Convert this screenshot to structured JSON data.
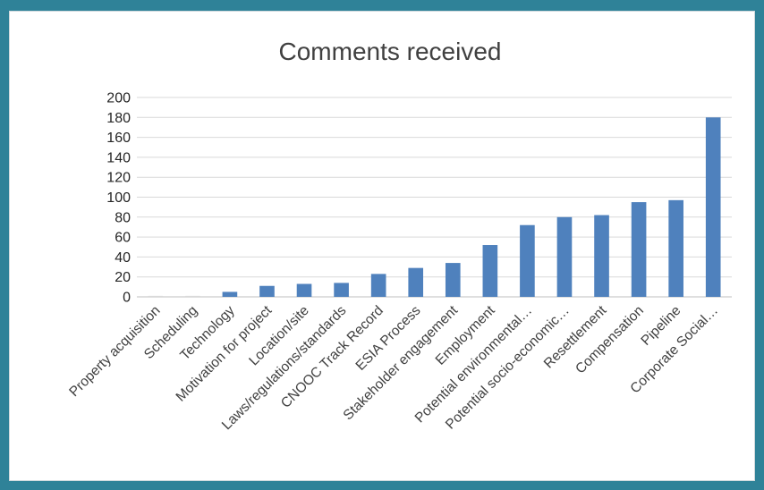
{
  "chart_data": {
    "type": "bar",
    "title": "Comments received",
    "xlabel": "",
    "ylabel": "",
    "ylim": [
      0,
      200
    ],
    "yticks": [
      0,
      20,
      40,
      60,
      80,
      100,
      120,
      140,
      160,
      180,
      200
    ],
    "grid": true,
    "legend": "none",
    "bar_color": "#4f81bd",
    "categories": [
      "Property acquisition",
      "Scheduling",
      "Technology",
      "Motivation for project",
      "Location/site",
      "Laws/regulations/standards",
      "CNOOC Track Record",
      "ESIA Process",
      "Stakeholder engagement",
      "Employment",
      "Potential environmental…",
      "Potential socio-economic…",
      "Resettlement",
      "Compensation",
      "Pipeline",
      "Corporate Social…"
    ],
    "values": [
      1,
      1,
      5,
      11,
      13,
      14,
      23,
      29,
      34,
      52,
      72,
      80,
      82,
      95,
      97,
      180
    ]
  }
}
